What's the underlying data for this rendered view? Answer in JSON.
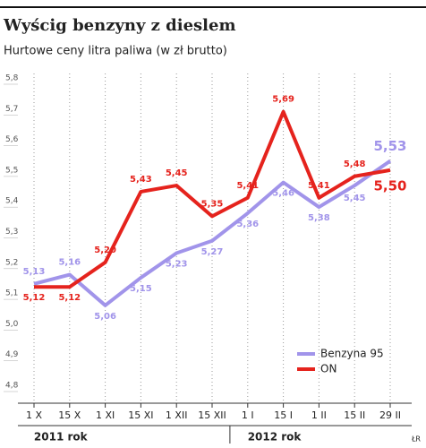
{
  "chart_data": {
    "type": "line",
    "title": "Wyścig benzyny z dieslem",
    "subtitle": "Hurtowe ceny litra paliwa (w zł brutto)",
    "categories": [
      "1 X",
      "15 X",
      "1 XI",
      "15 XI",
      "1 XII",
      "15 XII",
      "1 I",
      "15 I",
      "1 II",
      "15 II",
      "29 II"
    ],
    "x_groups": [
      "2011 rok",
      "2012 rok"
    ],
    "series": [
      {
        "name": "Benzyna 95",
        "color": "#a194ea",
        "values": [
          5.13,
          5.16,
          5.06,
          5.15,
          5.23,
          5.27,
          5.36,
          5.46,
          5.38,
          5.45,
          5.53
        ],
        "value_labels": [
          "5,13",
          "5,16",
          "5,06",
          "5,15",
          "5,23",
          "5,27",
          "5,36",
          "5,46",
          "5,38",
          "5,45",
          "5,53"
        ]
      },
      {
        "name": "ON",
        "color": "#e5231d",
        "values": [
          5.12,
          5.12,
          5.2,
          5.43,
          5.45,
          5.35,
          5.41,
          5.69,
          5.41,
          5.48,
          5.5
        ],
        "value_labels": [
          "5,12",
          "5,12",
          "5,20",
          "5,43",
          "5,45",
          "5,35",
          "5,41",
          "5,69",
          "5,41",
          "5,48",
          "5,50"
        ]
      }
    ],
    "ylim": [
      4.8,
      5.8
    ],
    "yticks": [
      {
        "value": 4.8,
        "label": "4,8"
      },
      {
        "value": 4.9,
        "label": "4,9"
      },
      {
        "value": 5.0,
        "label": "5,0"
      },
      {
        "value": 5.1,
        "label": "5,1"
      },
      {
        "value": 5.2,
        "label": "5,2"
      },
      {
        "value": 5.3,
        "label": "5,3"
      },
      {
        "value": 5.4,
        "label": "5,4"
      },
      {
        "value": 5.5,
        "label": "5,5"
      },
      {
        "value": 5.6,
        "label": "5,6"
      },
      {
        "value": 5.7,
        "label": "5,7"
      },
      {
        "value": 5.8,
        "label": "5,8"
      }
    ],
    "grid": true,
    "legend": "lower right",
    "credit": "ŁR"
  }
}
